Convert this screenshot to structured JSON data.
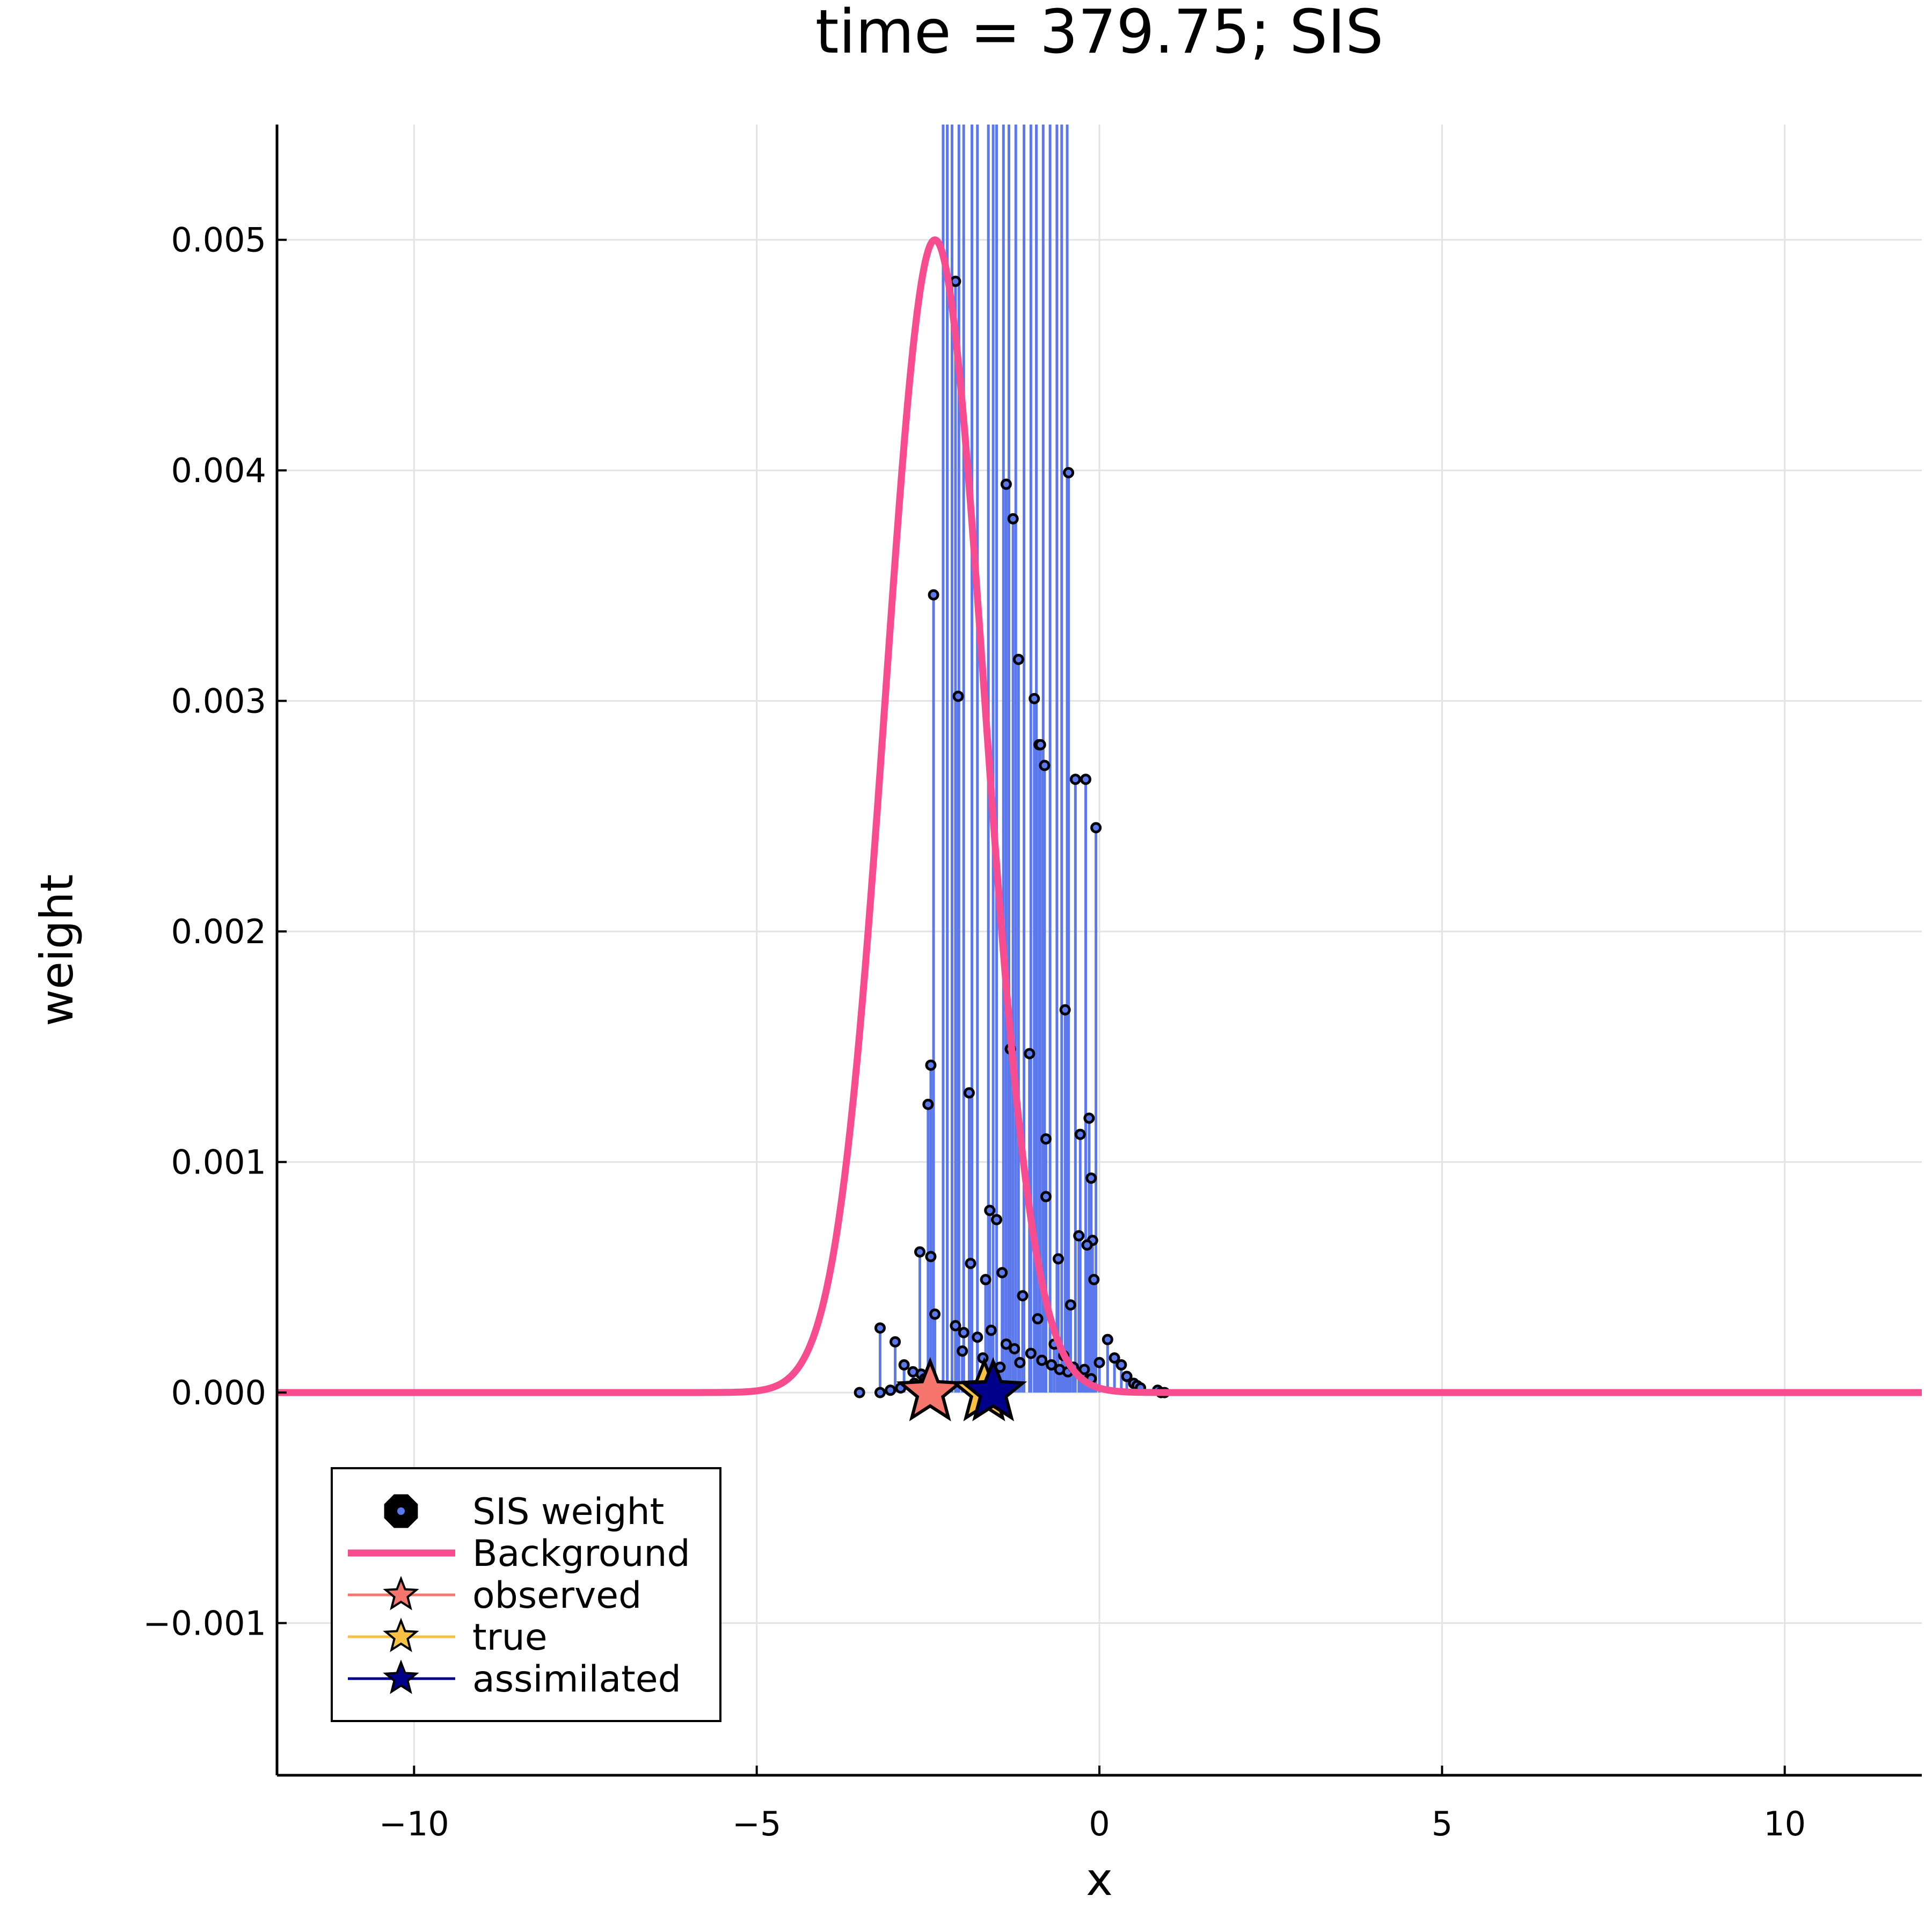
{
  "chart_data": {
    "type": "scatter",
    "title": "time = 379.75; SIS",
    "xlabel": "x",
    "ylabel": "weight",
    "xlim": [
      -12,
      12
    ],
    "ylim": [
      -0.00166,
      0.0055
    ],
    "xticks": [
      -10,
      -5,
      0,
      5,
      10
    ],
    "xtick_labels": [
      "−10",
      "−5",
      "0",
      "5",
      "10"
    ],
    "yticks": [
      -0.001,
      0.0,
      0.001,
      0.002,
      0.003,
      0.004,
      0.005
    ],
    "ytick_labels": [
      "−0.001",
      "0.000",
      "0.001",
      "0.002",
      "0.003",
      "0.004",
      "0.005"
    ],
    "grid": true,
    "legend_position": "bottom-left",
    "colors": {
      "stem": "#5b78ec",
      "marker_fill": "#5b78ec",
      "marker_edge": "#000000",
      "background": "#f74c8f",
      "observed": "#f6766e",
      "true": "#f7c244",
      "assimilated": "#00008b"
    },
    "legend": [
      {
        "label": "SIS weight",
        "kind": "marker"
      },
      {
        "label": "Background",
        "kind": "line"
      },
      {
        "label": "observed",
        "kind": "star"
      },
      {
        "label": "true",
        "kind": "star"
      },
      {
        "label": "assimilated",
        "kind": "star"
      }
    ],
    "background_curve": {
      "peak_x": -2.4,
      "peak_y": 0.005,
      "sigma": 0.72
    },
    "sis_weights": {
      "x": [
        -2.28,
        -2.22,
        -2.15,
        -2.05,
        -1.98,
        -1.86,
        -1.78,
        -1.62,
        -1.55,
        -1.5,
        -1.4,
        -1.32,
        -1.22,
        -1.1,
        -1.0,
        -0.92,
        -0.82,
        -0.72,
        -0.62,
        -0.55,
        -0.47,
        -2.42,
        -2.1,
        -1.36,
        -1.18,
        -0.95,
        -0.8,
        -0.45,
        -0.35,
        -0.2,
        -0.05,
        -2.46,
        -2.06,
        -1.26,
        -0.88,
        -0.86,
        -2.5,
        -1.9,
        -1.6,
        -1.5,
        -1.3,
        -1.02,
        -0.78,
        -0.5,
        -0.28,
        -0.15,
        -0.12,
        -0.1,
        -2.62,
        -2.46,
        -1.88,
        -1.66,
        -1.42,
        -1.12,
        -0.9,
        -0.78,
        -0.6,
        -0.42,
        -0.3,
        -0.18,
        -0.08,
        -2.4,
        -2.1,
        -1.98,
        -1.78,
        -1.58,
        -1.36,
        -1.24,
        -1.0,
        -0.84,
        -0.7,
        -0.58,
        -0.46,
        -0.38,
        -0.25,
        -0.12,
        -3.2,
        -2.98,
        -2.85,
        -2.72,
        -2.6,
        -2.0,
        -1.7,
        -1.45,
        -1.16,
        -0.66,
        -0.52,
        -0.22,
        0.0,
        0.12,
        0.22,
        0.32,
        0.4,
        0.5,
        -3.5,
        -3.2,
        -3.05,
        -2.9,
        -2.7,
        -2.55,
        0.55,
        0.6,
        0.85,
        0.9,
        0.95
      ],
      "y": [
        0.0055,
        0.0055,
        0.0055,
        0.0055,
        0.0055,
        0.0055,
        0.0055,
        0.0055,
        0.0055,
        0.0055,
        0.0055,
        0.0055,
        0.0055,
        0.0055,
        0.0055,
        0.0055,
        0.0055,
        0.0055,
        0.0055,
        0.0055,
        0.0055,
        0.00346,
        0.00482,
        0.00394,
        0.00318,
        0.00301,
        0.00272,
        0.00399,
        0.00266,
        0.00266,
        0.00245,
        0.00142,
        0.00302,
        0.00379,
        0.00281,
        0.00281,
        0.00125,
        0.0013,
        0.00079,
        0.00075,
        0.00149,
        0.00147,
        0.0011,
        0.00166,
        0.00112,
        0.00119,
        0.00093,
        0.00066,
        0.00061,
        0.00059,
        0.00056,
        0.00049,
        0.00052,
        0.00042,
        0.00032,
        0.00085,
        0.00058,
        0.00038,
        0.00068,
        0.00064,
        0.00049,
        0.00034,
        0.00029,
        0.00026,
        0.00024,
        0.00027,
        0.00021,
        0.00019,
        0.00017,
        0.00014,
        0.00012,
        0.0001,
        9e-05,
        0.00011,
        8e-05,
        6e-05,
        0.00028,
        0.00022,
        0.00012,
        9e-05,
        8e-05,
        0.00018,
        0.00015,
        0.00011,
        0.00013,
        0.00021,
        0.00016,
        0.0001,
        0.00013,
        0.00023,
        0.00015,
        0.00012,
        7e-05,
        4e-05,
        0.0,
        0.0,
        1e-05,
        2e-05,
        4e-05,
        6e-05,
        3e-05,
        2e-05,
        1e-05,
        0.0,
        0.0
      ]
    },
    "stars": {
      "observed": {
        "x": -2.47,
        "y": 0.0
      },
      "true": {
        "x": -1.68,
        "y": 0.0
      },
      "assimilated": {
        "x": -1.55,
        "y": 0.0
      }
    }
  }
}
